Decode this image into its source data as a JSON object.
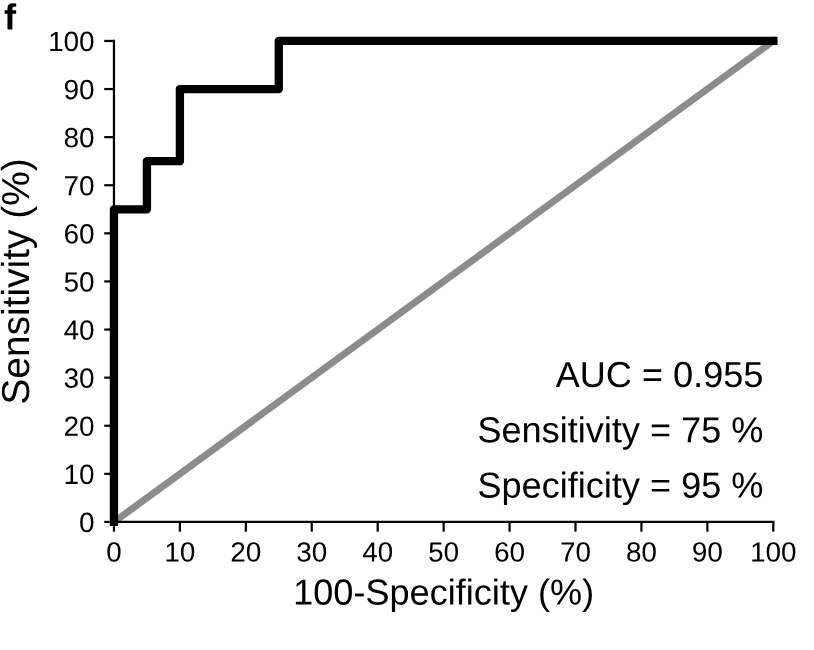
{
  "chart_data": {
    "type": "line",
    "xlabel": "100-Specificity (%)",
    "ylabel": "Sensitivity (%)",
    "series": [
      {
        "color": "#000000",
        "x": [
          0,
          0,
          5,
          5,
          10,
          10,
          25,
          25,
          100
        ],
        "values": [
          0,
          65,
          65,
          75,
          75,
          90,
          90,
          100,
          100
        ]
      },
      {
        "color": "#8c8c8c",
        "x": [
          0,
          100
        ],
        "values": [
          0,
          100
        ]
      }
    ],
    "xlim": [
      0,
      100
    ],
    "ylim": [
      0,
      100
    ],
    "xticks": [
      0,
      10,
      20,
      30,
      40,
      50,
      60,
      70,
      80,
      90,
      100
    ],
    "yticks": [
      0,
      10,
      20,
      30,
      40,
      50,
      60,
      70,
      80,
      90,
      100
    ],
    "annotations": [
      "f",
      "AUC = 0.955",
      "Sensitivity = 75 %",
      "Specificity = 95 %"
    ],
    "grid": false,
    "legend": false,
    "marker": "none",
    "line_style": "solid"
  }
}
